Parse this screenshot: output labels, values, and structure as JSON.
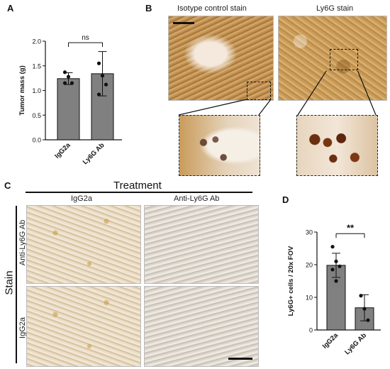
{
  "panels": {
    "a": {
      "label": "A"
    },
    "b": {
      "label": "B",
      "left_title": "Isotype control stain",
      "right_title": "Ly6G stain"
    },
    "c": {
      "label": "C",
      "treatment": "Treatment",
      "col1": "IgG2a",
      "col2": "Anti-Ly6G Ab",
      "stain": "Stain",
      "row1": "Anti-Ly6G Ab",
      "row2": "IgG2a"
    },
    "d": {
      "label": "D"
    }
  },
  "chart_data": [
    {
      "panel": "A",
      "type": "bar",
      "categories": [
        "IgG2a",
        "Ly6G Ab"
      ],
      "values": [
        1.24,
        1.34
      ],
      "errors": [
        0.12,
        0.45
      ],
      "points": [
        [
          1.37,
          1.28,
          1.15,
          1.15
        ],
        [
          1.55,
          1.3,
          1.12,
          0.92
        ]
      ],
      "ylabel": "Tumor mass (g)",
      "ylim": [
        0,
        2.0
      ],
      "yticks": [
        "0.0",
        "0.5",
        "1.0",
        "1.5",
        "2.0"
      ],
      "significance": "ns",
      "bar_color": "#808080"
    },
    {
      "panel": "D",
      "type": "bar",
      "categories": [
        "IgG2a",
        "Ly6G Ab"
      ],
      "values": [
        19.8,
        6.8
      ],
      "errors": [
        3.7,
        4.0
      ],
      "points": [
        [
          25.5,
          21.0,
          19.5,
          18.5,
          15.0
        ],
        [
          10.5,
          6.5,
          3.0
        ]
      ],
      "ylabel": "Ly6G+ cells / 20x FOV",
      "ylim": [
        0,
        30
      ],
      "yticks": [
        "0",
        "10",
        "20",
        "30"
      ],
      "significance": "**",
      "bar_color": "#808080"
    }
  ]
}
